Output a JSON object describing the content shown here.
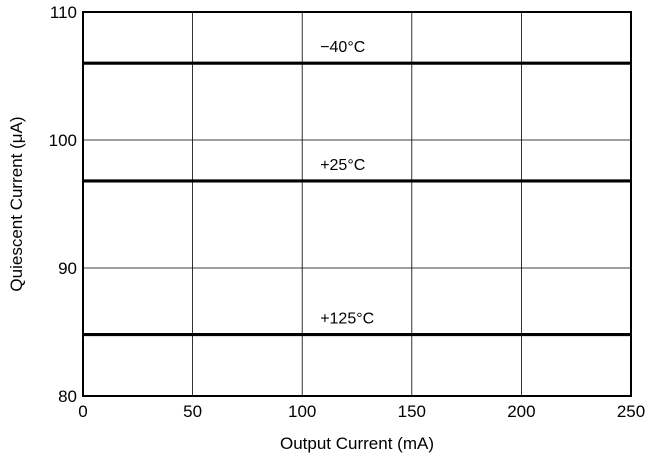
{
  "chart_data": {
    "type": "line",
    "xlabel": "Output Current (mA)",
    "ylabel": "Quiescent Current (μA)",
    "xlim": [
      0,
      250
    ],
    "ylim": [
      80,
      110
    ],
    "x_ticks": [
      0,
      50,
      100,
      150,
      200,
      250
    ],
    "y_ticks": [
      80,
      90,
      100,
      110
    ],
    "x_tick_labels": [
      "0",
      "50",
      "100",
      "150",
      "200",
      "250"
    ],
    "y_tick_labels": [
      "80",
      "90",
      "100",
      "110"
    ],
    "grid": true,
    "legend": "none",
    "series": [
      {
        "name": "−40°C",
        "x": [
          0,
          250
        ],
        "y": [
          106,
          106
        ]
      },
      {
        "name": "+25°C",
        "x": [
          0,
          250
        ],
        "y": [
          96.8,
          96.8
        ]
      },
      {
        "name": "+125°C",
        "x": [
          0,
          250
        ],
        "y": [
          84.8,
          84.8
        ]
      }
    ],
    "line_color": "#000000"
  }
}
